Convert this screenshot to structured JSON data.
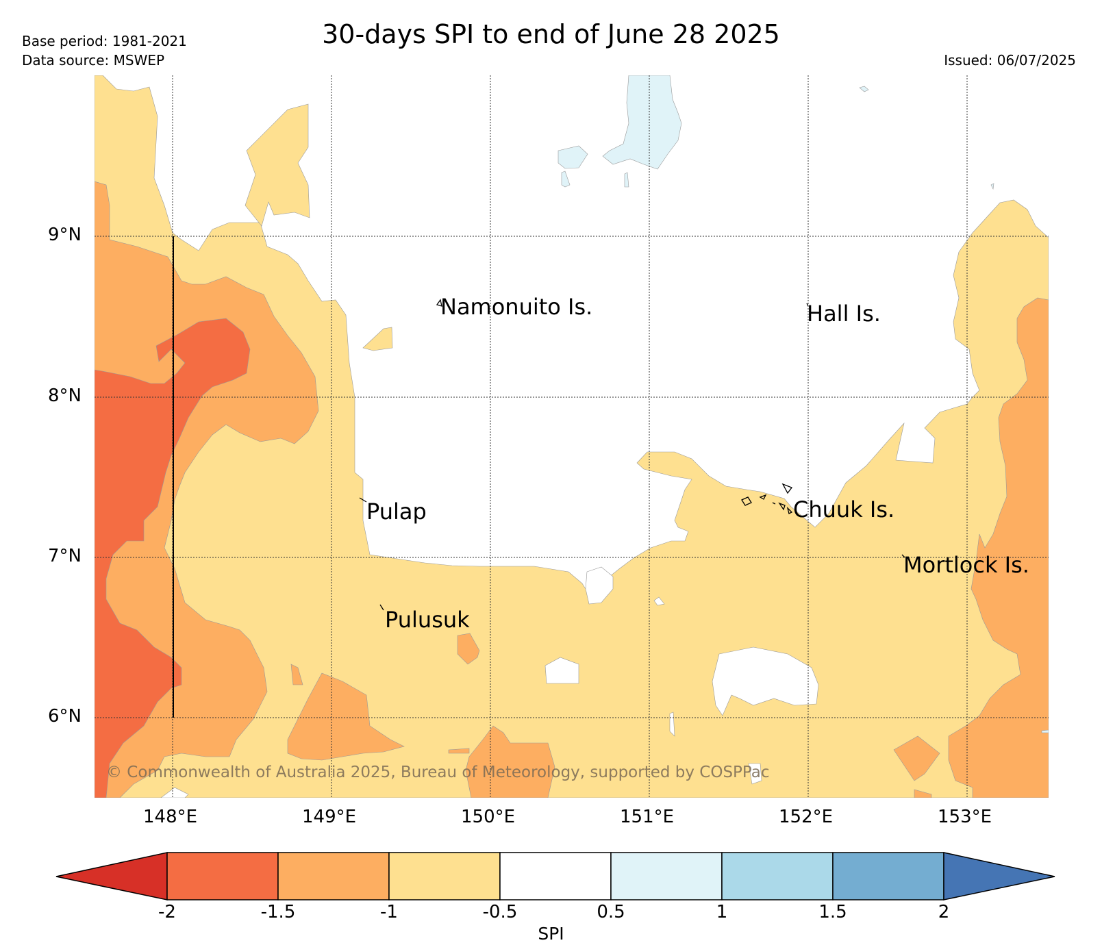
{
  "header": {
    "title": "30-days SPI to end of June 28 2025",
    "base_period": "Base period: 1981-2021",
    "data_source": "Data source: MSWEP",
    "issued": "Issued: 06/07/2025"
  },
  "map": {
    "lat_ticks": [
      "9°N",
      "8°N",
      "7°N",
      "6°N"
    ],
    "lon_ticks": [
      "148°E",
      "149°E",
      "150°E",
      "151°E",
      "152°E",
      "153°E"
    ],
    "places": {
      "namonuito": "Namonuito Is.",
      "hall": "Hall Is.",
      "pulap": "Pulap",
      "chuuk": "Chuuk Is.",
      "mortlock": "Mortlock Is.",
      "pulusuk": "Pulusuk"
    },
    "copyright": "© Commonwealth of Australia 2025, Bureau of Meteorology, supported by COSPPac"
  },
  "colorbar": {
    "label": "SPI",
    "ticks": [
      "-2",
      "-1.5",
      "-1",
      "-0.5",
      "0.5",
      "1",
      "1.5",
      "2"
    ],
    "colors": {
      "below_-2": "#d73027",
      "-2_to_-1.5": "#f46d43",
      "-1.5_to_-1": "#fdae61",
      "-1_to_-0.5": "#fee090",
      "-0.5_to_0.5": "#ffffff",
      "0.5_to_1": "#e0f3f8",
      "1_to_1.5": "#abd9e9",
      "1.5_to_2": "#74add1",
      "above_2": "#4575b4"
    }
  }
}
